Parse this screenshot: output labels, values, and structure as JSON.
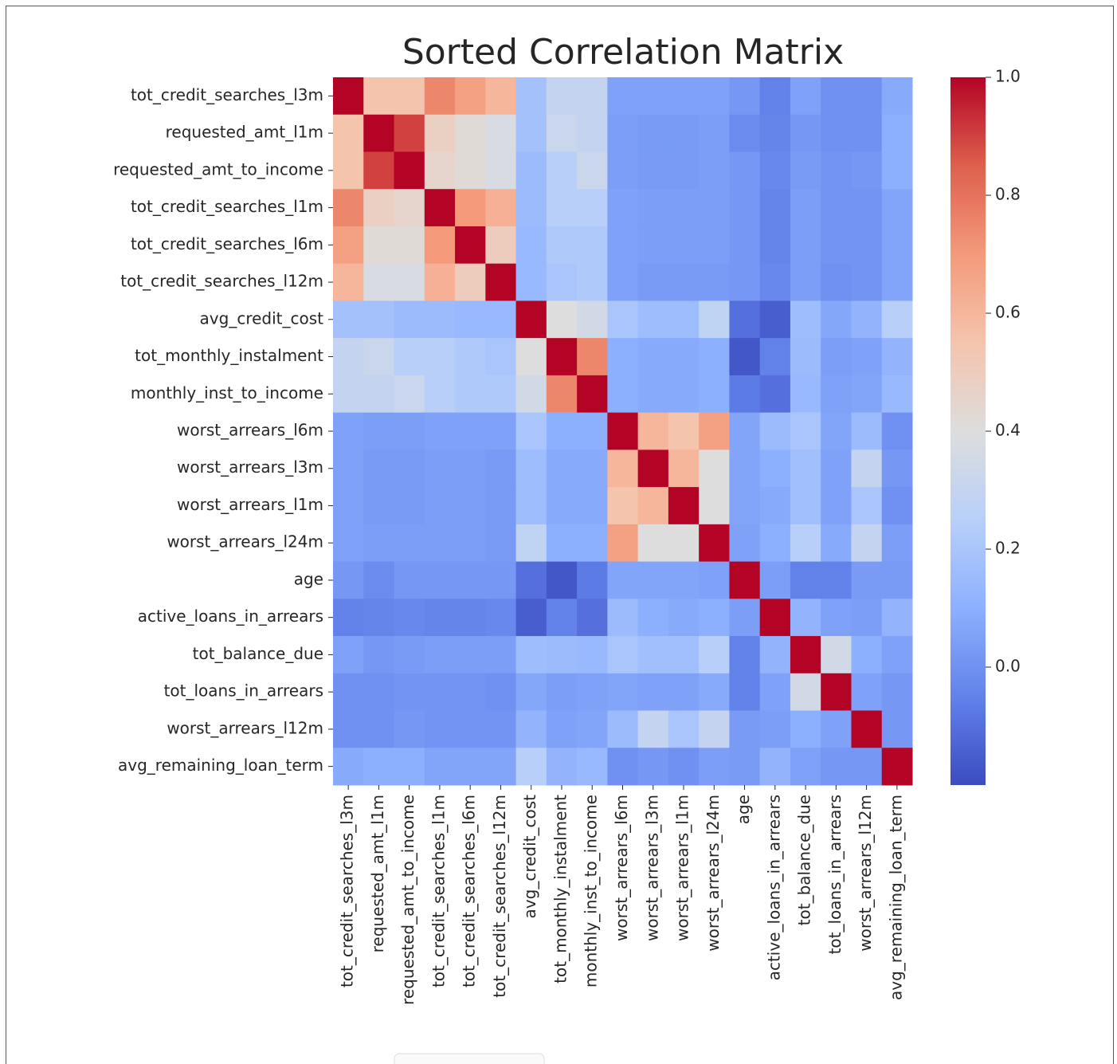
{
  "chart_data": {
    "type": "heatmap",
    "title": "Sorted Correlation Matrix",
    "colormap": "coolwarm",
    "categories": [
      "tot_credit_searches_l3m",
      "requested_amt_l1m",
      "requested_amt_to_income",
      "tot_credit_searches_l1m",
      "tot_credit_searches_l6m",
      "tot_credit_searches_l12m",
      "avg_credit_cost",
      "tot_monthly_instalment",
      "monthly_inst_to_income",
      "worst_arrears_l6m",
      "worst_arrears_l3m",
      "worst_arrears_l1m",
      "worst_arrears_l24m",
      "age",
      "active_loans_in_arrears",
      "tot_balance_due",
      "tot_loans_in_arrears",
      "worst_arrears_l12m",
      "avg_remaining_loan_term"
    ],
    "z": [
      [
        1,
        0.55,
        0.55,
        0.75,
        0.68,
        0.6,
        0.18,
        0.3,
        0.3,
        0.05,
        0.05,
        0.05,
        0.05,
        0.02,
        -0.05,
        0.05,
        0,
        0,
        0.08
      ],
      [
        0.55,
        1,
        0.9,
        0.48,
        0.42,
        0.38,
        0.18,
        0.32,
        0.3,
        0.04,
        0.03,
        0.03,
        0.04,
        -0.02,
        -0.04,
        0.02,
        0,
        0,
        0.1
      ],
      [
        0.55,
        0.9,
        1,
        0.45,
        0.42,
        0.38,
        0.15,
        0.25,
        0.32,
        0.04,
        0.03,
        0.03,
        0.04,
        0.02,
        -0.03,
        0.03,
        0.01,
        0.02,
        0.1
      ],
      [
        0.75,
        0.48,
        0.45,
        1,
        0.7,
        0.62,
        0.15,
        0.25,
        0.25,
        0.05,
        0.04,
        0.04,
        0.04,
        0.02,
        -0.04,
        0.04,
        0.01,
        0.01,
        0.06
      ],
      [
        0.68,
        0.42,
        0.42,
        0.7,
        1,
        0.5,
        0.14,
        0.22,
        0.22,
        0.05,
        0.04,
        0.04,
        0.04,
        0.02,
        -0.04,
        0.04,
        0.01,
        0.01,
        0.06
      ],
      [
        0.6,
        0.38,
        0.38,
        0.62,
        0.5,
        1,
        0.14,
        0.2,
        0.22,
        0.05,
        0.03,
        0.03,
        0.03,
        0.02,
        -0.03,
        0.04,
        0,
        0.01,
        0.06
      ],
      [
        0.18,
        0.18,
        0.15,
        0.15,
        0.14,
        0.14,
        1,
        0.4,
        0.35,
        0.2,
        0.16,
        0.16,
        0.28,
        -0.1,
        -0.15,
        0.16,
        0.07,
        0.12,
        0.25
      ],
      [
        0.3,
        0.32,
        0.25,
        0.25,
        0.22,
        0.2,
        0.4,
        1,
        0.75,
        0.1,
        0.08,
        0.08,
        0.1,
        -0.17,
        -0.05,
        0.15,
        0.04,
        0.05,
        0.12
      ],
      [
        0.3,
        0.3,
        0.32,
        0.25,
        0.22,
        0.22,
        0.35,
        0.75,
        1,
        0.1,
        0.08,
        0.08,
        0.1,
        -0.07,
        -0.1,
        0.14,
        0.05,
        0.06,
        0.14
      ],
      [
        0.05,
        0.04,
        0.04,
        0.05,
        0.05,
        0.05,
        0.2,
        0.1,
        0.1,
        1,
        0.6,
        0.55,
        0.68,
        0.06,
        0.15,
        0.2,
        0.06,
        0.15,
        0
      ],
      [
        0.05,
        0.03,
        0.03,
        0.04,
        0.04,
        0.03,
        0.16,
        0.08,
        0.08,
        0.6,
        1,
        0.6,
        0.4,
        0.06,
        0.1,
        0.17,
        0.05,
        0.3,
        0.02
      ],
      [
        0.05,
        0.03,
        0.03,
        0.04,
        0.04,
        0.03,
        0.16,
        0.08,
        0.08,
        0.55,
        0.6,
        1,
        0.4,
        0.06,
        0.08,
        0.17,
        0.05,
        0.2,
        0
      ],
      [
        0.05,
        0.04,
        0.04,
        0.04,
        0.04,
        0.03,
        0.28,
        0.1,
        0.1,
        0.68,
        0.4,
        0.4,
        1,
        0.05,
        0.1,
        0.25,
        0.08,
        0.3,
        0.04
      ],
      [
        0.02,
        -0.02,
        0.02,
        0.02,
        0.02,
        0.02,
        -0.1,
        -0.17,
        -0.07,
        0.06,
        0.06,
        0.06,
        0.05,
        1,
        0.04,
        -0.05,
        -0.05,
        0.03,
        0.03
      ],
      [
        -0.05,
        -0.04,
        -0.03,
        -0.04,
        -0.04,
        -0.03,
        -0.15,
        -0.05,
        -0.1,
        0.15,
        0.1,
        0.08,
        0.1,
        0.04,
        1,
        0.12,
        0.05,
        0.04,
        0.12
      ],
      [
        0.05,
        0.02,
        0.03,
        0.04,
        0.04,
        0.04,
        0.16,
        0.15,
        0.14,
        0.2,
        0.17,
        0.17,
        0.25,
        -0.05,
        0.12,
        1,
        0.35,
        0.1,
        0.05
      ],
      [
        0,
        0,
        0.01,
        0.01,
        0.01,
        0,
        0.07,
        0.04,
        0.05,
        0.06,
        0.05,
        0.05,
        0.08,
        -0.05,
        0.05,
        0.35,
        1,
        0.05,
        0.02
      ],
      [
        0,
        0,
        0.02,
        0.01,
        0.01,
        0.01,
        0.12,
        0.05,
        0.06,
        0.15,
        0.3,
        0.2,
        0.3,
        0.03,
        0.04,
        0.1,
        0.05,
        1,
        0.02
      ],
      [
        0.08,
        0.1,
        0.1,
        0.06,
        0.06,
        0.06,
        0.25,
        0.12,
        0.14,
        0,
        0.02,
        0,
        0.04,
        0.03,
        0.12,
        0.05,
        0.02,
        0.02,
        1
      ]
    ],
    "zlim": [
      -0.2,
      1.0
    ],
    "zticks": [
      {
        "value": 0,
        "label": "0.0"
      },
      0.2,
      0.4,
      0.6,
      0.8,
      {
        "value": 1,
        "label": "1.0"
      }
    ]
  }
}
